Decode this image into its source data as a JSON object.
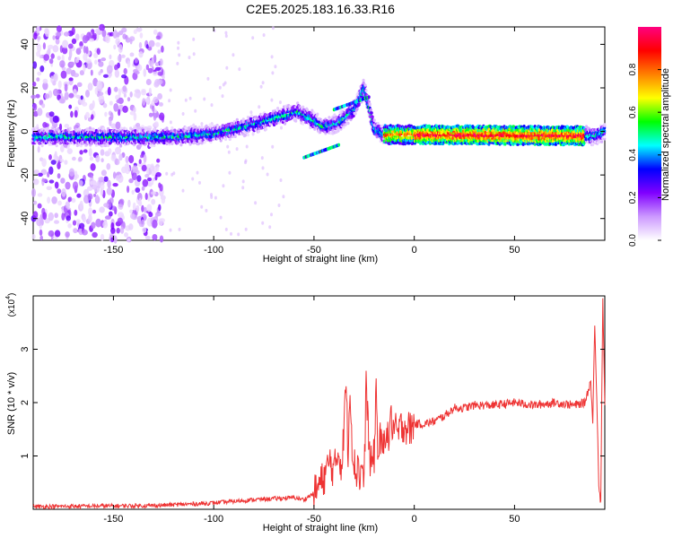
{
  "title": "C2E5.2025.183.16.33.R16",
  "chart_data": [
    {
      "type": "heatmap",
      "xlabel": "Height of straight line (km)",
      "ylabel": "Frequency (Hz)",
      "xlim": [
        -190,
        95
      ],
      "ylim": [
        -50,
        48
      ],
      "xticks": [
        -150,
        -100,
        -50,
        0,
        50
      ],
      "yticks": [
        -40,
        -20,
        0,
        20,
        40
      ],
      "colorbar": {
        "label": "Normalized spectral amplitude",
        "range": [
          0,
          1
        ],
        "ticks": [
          "0.0",
          "0.2",
          "0.4",
          "0.6",
          "0.8"
        ],
        "colors": [
          "#ffffff",
          "#cc99ff",
          "#8000ff",
          "#0000ff",
          "#00ffff",
          "#00ff00",
          "#ffff00",
          "#ff8000",
          "#ff0000",
          "#ff0080"
        ]
      },
      "ridge": [
        {
          "x": -190,
          "f": -2.5
        },
        {
          "x": -120,
          "f": -2.5
        },
        {
          "x": -100,
          "f": -1
        },
        {
          "x": -85,
          "f": 2
        },
        {
          "x": -70,
          "f": 6
        },
        {
          "x": -58,
          "f": 9
        },
        {
          "x": -52,
          "f": 6
        },
        {
          "x": -45,
          "f": 2
        },
        {
          "x": -38,
          "f": 4
        },
        {
          "x": -30,
          "f": 10
        },
        {
          "x": -25,
          "f": 20
        },
        {
          "x": -20,
          "f": 1
        },
        {
          "x": -15,
          "f": -1.5
        },
        {
          "x": 0,
          "f": -1.5
        },
        {
          "x": 90,
          "f": -2
        },
        {
          "x": 95,
          "f": 0
        }
      ],
      "noise_band_x": [
        -190,
        -125
      ]
    },
    {
      "type": "line",
      "xlabel": "Height of straight line (km)",
      "ylabel": "SNR (10 * v/v)",
      "yscale_label": "(x10^4)",
      "ymultiplier_text": "(x10",
      "ymultiplier_exp": "4",
      "ymultiplier_close": ")",
      "xlim": [
        -190,
        95
      ],
      "ylim": [
        0,
        4
      ],
      "xticks": [
        -150,
        -100,
        -50,
        0,
        50
      ],
      "yticks": [
        1,
        2,
        3
      ],
      "color": "#ee3333",
      "series": [
        {
          "x": [
            -190,
            -160,
            -130,
            -110,
            -100,
            -90,
            -80,
            -70,
            -60,
            -55,
            -50,
            -45,
            -42,
            -40,
            -38,
            -36,
            -34,
            -33,
            -32,
            -31,
            -30,
            -29,
            -28,
            -27,
            -26,
            -25,
            -24,
            -22,
            -20,
            -19,
            -18,
            -17,
            -16,
            -15,
            -14,
            -13,
            -12,
            -10,
            -8,
            -6,
            -4,
            -2,
            0,
            5,
            10,
            15,
            20,
            25,
            30,
            40,
            50,
            60,
            70,
            80,
            85,
            88,
            89,
            90,
            91,
            92,
            93,
            94,
            95
          ],
          "y": [
            0.05,
            0.06,
            0.07,
            0.1,
            0.12,
            0.15,
            0.18,
            0.2,
            0.22,
            0.18,
            0.3,
            0.6,
            0.9,
            0.7,
            1.1,
            0.8,
            2.4,
            1.0,
            2.45,
            1.2,
            0.9,
            0.6,
            1.0,
            0.5,
            0.9,
            0.4,
            2.4,
            0.8,
            1.0,
            2.3,
            0.9,
            1.4,
            1.0,
            1.3,
            1.6,
            1.2,
            1.7,
            1.5,
            1.4,
            1.6,
            1.55,
            1.5,
            1.6,
            1.6,
            1.65,
            1.75,
            1.9,
            1.9,
            1.95,
            1.95,
            2.0,
            1.95,
            2.0,
            1.95,
            2.0,
            2.4,
            1.6,
            3.5,
            2.1,
            0.5,
            0.1,
            4.0,
            2.0
          ]
        }
      ]
    }
  ]
}
